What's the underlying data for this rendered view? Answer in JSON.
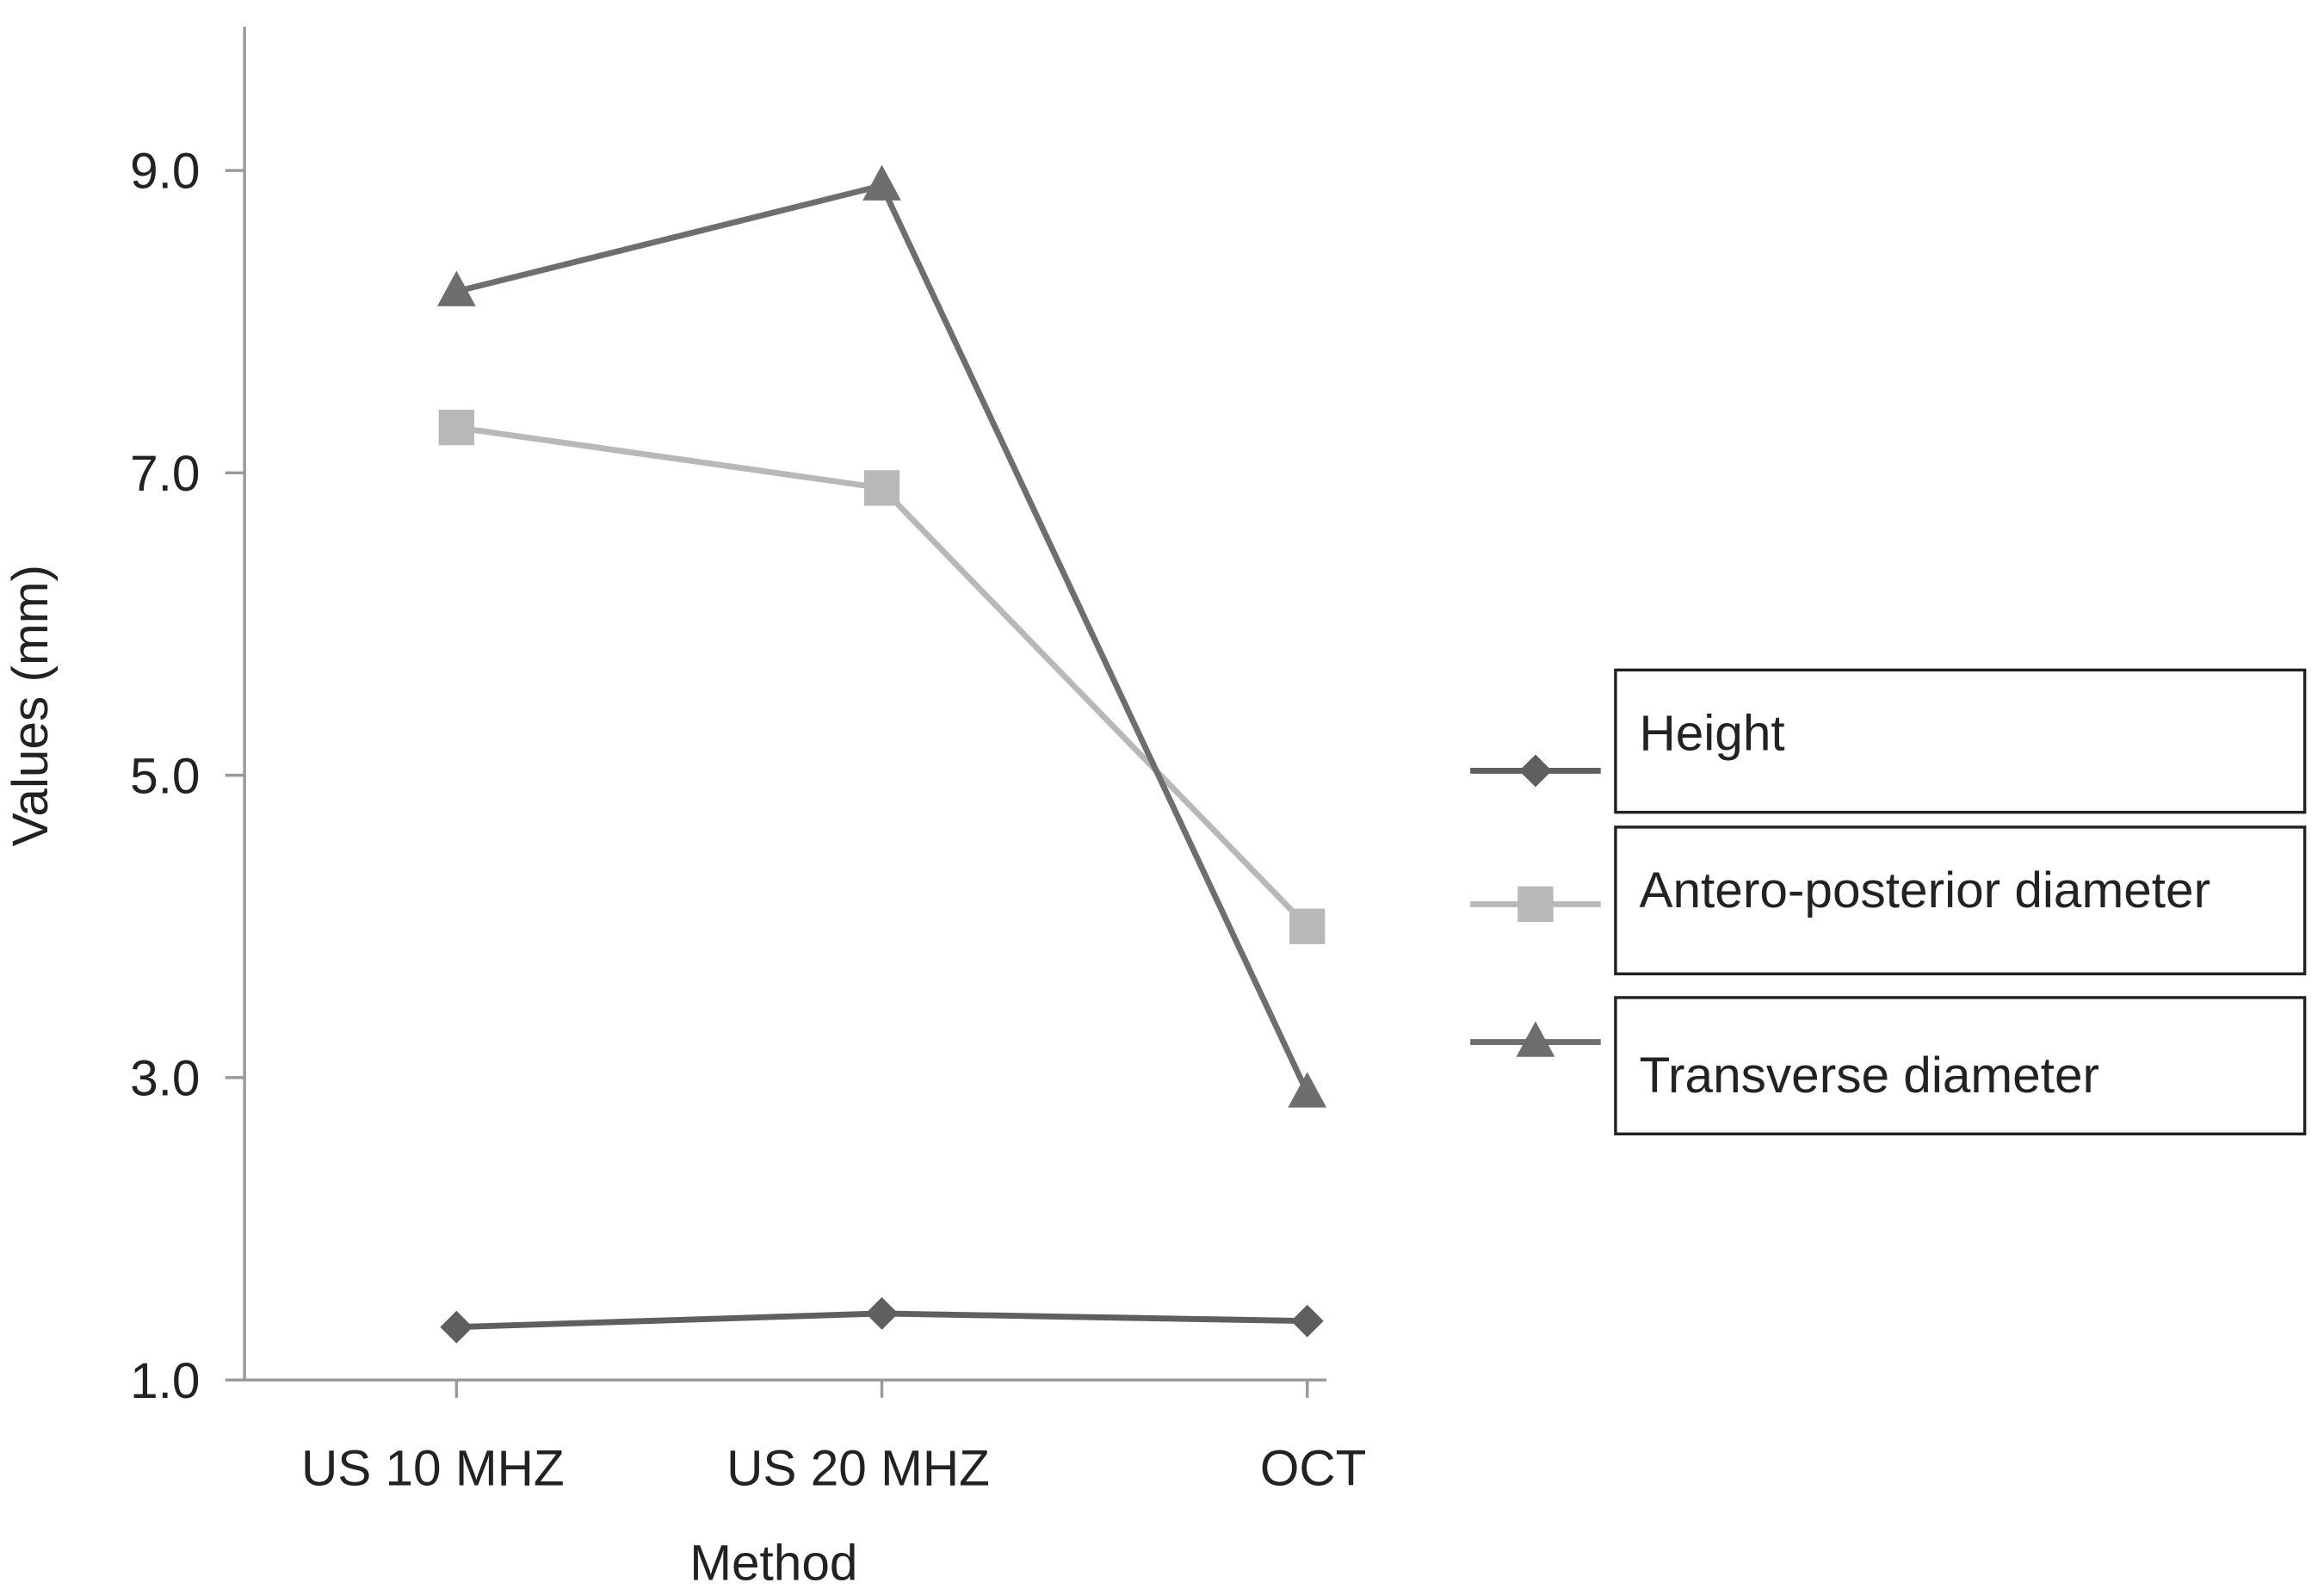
{
  "chart_data": {
    "type": "line",
    "title": "",
    "xlabel": "Method",
    "ylabel": "Values (mm)",
    "categories": [
      "US 10 MHZ",
      "US 20 MHZ",
      "OCT"
    ],
    "ylim": [
      1.0,
      9.0
    ],
    "yticks": [
      "1.0",
      "3.0",
      "5.0",
      "7.0",
      "9.0"
    ],
    "ytick_values": [
      1.0,
      3.0,
      5.0,
      7.0,
      9.0
    ],
    "grid": false,
    "legend_position": "right",
    "series": [
      {
        "name": "Height",
        "marker": "diamond",
        "color": "#5f5f5f",
        "values": [
          1.35,
          1.44,
          1.39
        ]
      },
      {
        "name": "Antero-posterior diameter",
        "marker": "square",
        "color": "#b8b8b8",
        "values": [
          7.3,
          6.9,
          4.0
        ]
      },
      {
        "name": "Transverse diameter",
        "marker": "triangle",
        "color": "#6e6e6e",
        "values": [
          8.2,
          8.9,
          2.9
        ]
      }
    ]
  }
}
